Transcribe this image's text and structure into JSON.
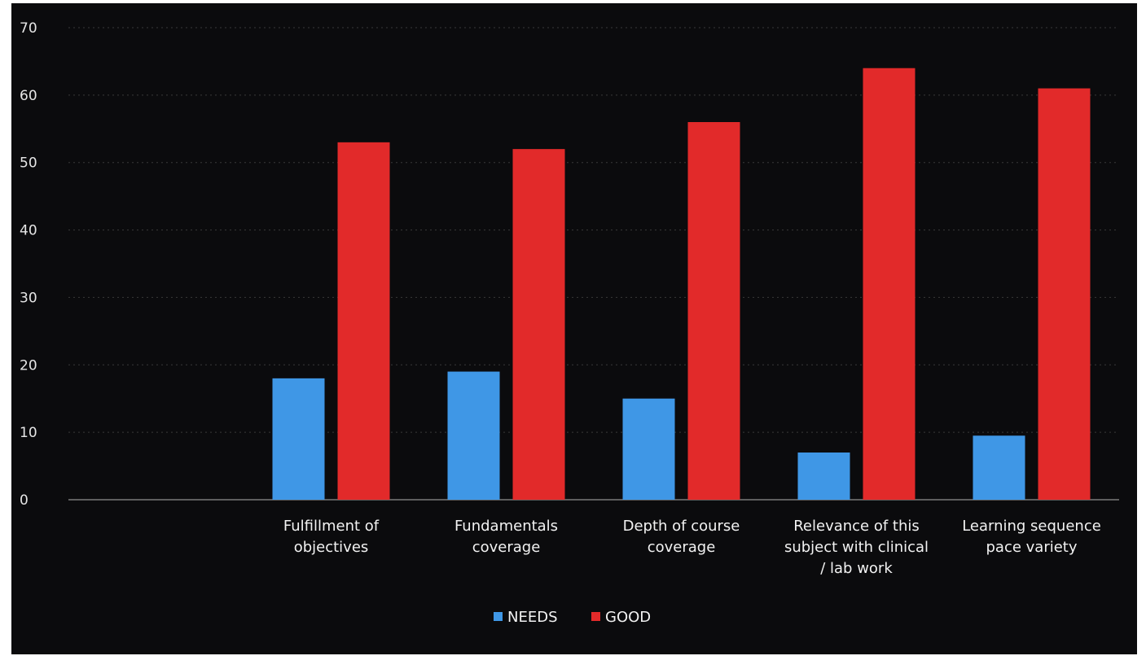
{
  "chart_data": {
    "type": "bar",
    "categories": [
      [
        "",
        ""
      ],
      [
        "Fulfillment of",
        "objectives"
      ],
      [
        "Fundamentals",
        "coverage"
      ],
      [
        "Depth of course",
        "coverage"
      ],
      [
        "Relevance of this",
        "subject with clinical",
        "/ lab work"
      ],
      [
        "Learning sequence",
        "pace variety"
      ]
    ],
    "series": [
      {
        "name": "NEEDS",
        "values": [
          0,
          18,
          19,
          15,
          7,
          9.5
        ],
        "color": "#3f97e6"
      },
      {
        "name": "GOOD",
        "values": [
          0,
          53,
          52,
          56,
          64,
          61
        ],
        "color": "#e22a2a"
      }
    ],
    "yticks": [
      "0",
      "10",
      "20",
      "30",
      "40",
      "50",
      "60",
      "70"
    ],
    "ylim": [
      0,
      70
    ],
    "grid": true,
    "legend": "bottom-center",
    "title": "",
    "xlabel": "",
    "ylabel": ""
  }
}
